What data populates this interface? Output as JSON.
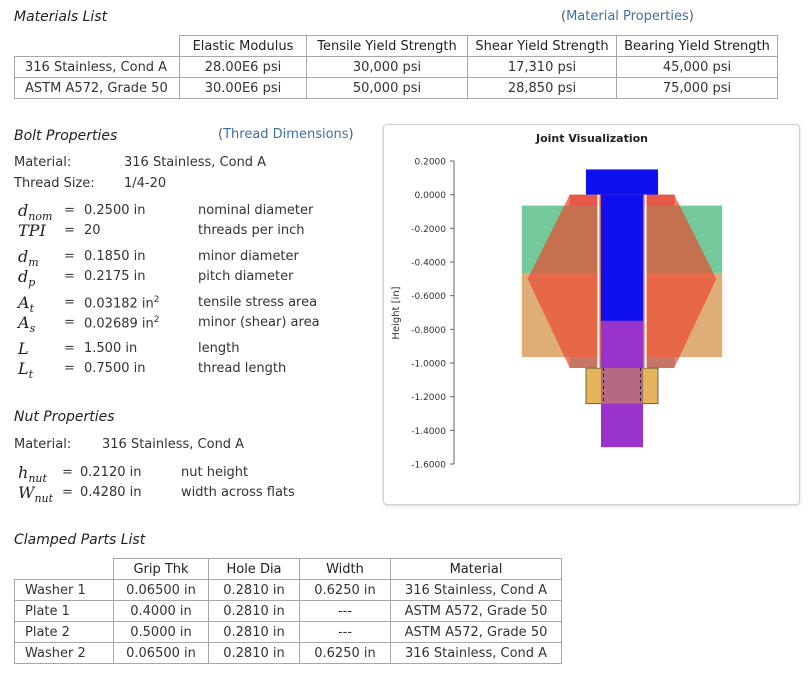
{
  "materials": {
    "title": "Materials List",
    "link": "Material Properties",
    "columns": [
      "",
      "Elastic Modulus",
      "Tensile Yield Strength",
      "Shear Yield Strength",
      "Bearing Yield Strength"
    ],
    "rows": [
      [
        "316 Stainless, Cond A",
        "28.00E6 psi",
        "30,000 psi",
        "17,310 psi",
        "45,000 psi"
      ],
      [
        "ASTM A572, Grade 50",
        "30.00E6 psi",
        "50,000 psi",
        "28,850 psi",
        "75,000 psi"
      ]
    ]
  },
  "bolt": {
    "title": "Bolt Properties",
    "link": "Thread Dimensions",
    "material_label": "Material:",
    "material_value": "316 Stainless, Cond A",
    "thread_label": "Thread Size:",
    "thread_value": "1/4-20",
    "params": [
      {
        "sym": "d",
        "sub": "nom",
        "value": "0.2500 in",
        "desc": "nominal diameter"
      },
      {
        "sym": "TPI",
        "sub": "",
        "value": "20",
        "desc": "threads per inch"
      },
      {
        "sym": "d",
        "sub": "m",
        "value": "0.1850 in",
        "desc": "minor diameter"
      },
      {
        "sym": "d",
        "sub": "p",
        "value": "0.2175 in",
        "desc": "pitch diameter"
      },
      {
        "sym": "A",
        "sub": "t",
        "value": "0.03182 in",
        "sup": "2",
        "desc": "tensile stress area"
      },
      {
        "sym": "A",
        "sub": "s",
        "value": "0.02689 in",
        "sup": "2",
        "desc": "minor (shear) area"
      },
      {
        "sym": "L",
        "sub": "",
        "value": "1.500 in",
        "desc": "length"
      },
      {
        "sym": "L",
        "sub": "t",
        "value": "0.7500 in",
        "desc": "thread length"
      }
    ]
  },
  "nut": {
    "title": "Nut Properties",
    "material_label": "Material:",
    "material_value": "316 Stainless, Cond A",
    "params": [
      {
        "sym": "h",
        "sub": "nut",
        "value": "0.2120 in",
        "desc": "nut height"
      },
      {
        "sym": "W",
        "sub": "nut",
        "value": "0.4280 in",
        "desc": "width across flats"
      }
    ]
  },
  "clamped": {
    "title": "Clamped Parts List",
    "columns": [
      "",
      "Grip Thk",
      "Hole Dia",
      "Width",
      "Material"
    ],
    "rows": [
      [
        "Washer 1",
        "0.06500 in",
        "0.2810 in",
        "0.6250 in",
        "316 Stainless, Cond A"
      ],
      [
        "Plate 1",
        "0.4000 in",
        "0.2810 in",
        "---",
        "ASTM A572, Grade 50"
      ],
      [
        "Plate 2",
        "0.5000 in",
        "0.2810 in",
        "---",
        "ASTM A572, Grade 50"
      ],
      [
        "Washer 2",
        "0.06500 in",
        "0.2810 in",
        "0.6250 in",
        "316 Stainless, Cond A"
      ]
    ]
  },
  "chart_data": {
    "type": "area",
    "title": "Joint Visualization",
    "xlabel": "",
    "ylabel": "Height [in]",
    "ylim": [
      -1.6,
      0.2
    ],
    "yticks": [
      "0.2000",
      "0.0000",
      "-0.2000",
      "-0.4000",
      "-0.6000",
      "-0.8000",
      "-1.0000",
      "-1.2000",
      "-1.4000",
      "-1.6000"
    ],
    "parts": [
      {
        "name": "Washer 1",
        "top": 0.0,
        "bottom": -0.065,
        "color": "#e06060"
      },
      {
        "name": "Plate 1",
        "top": -0.065,
        "bottom": -0.465,
        "color": "#5cc08a"
      },
      {
        "name": "Plate 2",
        "top": -0.465,
        "bottom": -0.965,
        "color": "#d9a060"
      },
      {
        "name": "Washer 2",
        "top": -0.965,
        "bottom": -1.03,
        "color": "#5fd8d8"
      },
      {
        "name": "Nut",
        "top": -1.03,
        "bottom": -1.242,
        "color": "#e0a840"
      }
    ],
    "bolt": {
      "head_top": 0.15,
      "head_bottom": 0.0,
      "shank_bottom": -0.75,
      "thread_bottom": -1.5,
      "color": "#1010ee",
      "thread_color": "#9933cc"
    }
  }
}
